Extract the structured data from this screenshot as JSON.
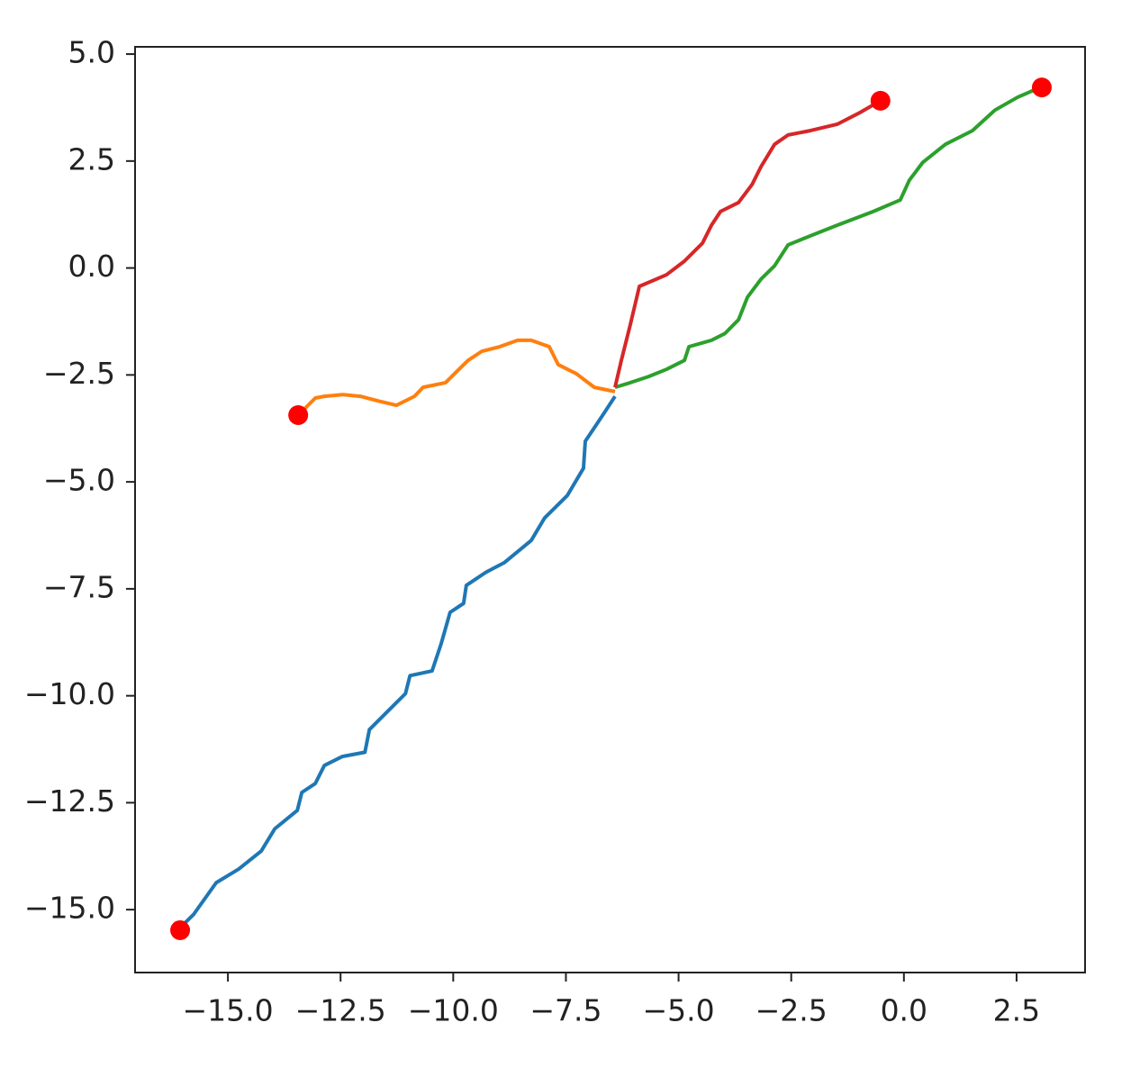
{
  "chart_data": {
    "type": "line",
    "xlim": [
      -17.06,
      4.02
    ],
    "ylim": [
      -16.47,
      5.17
    ],
    "xticks": [
      {
        "value": -15,
        "label": "−15.0"
      },
      {
        "value": -12.5,
        "label": "−12.5"
      },
      {
        "value": -10,
        "label": "−10.0"
      },
      {
        "value": -7.5,
        "label": "−7.5"
      },
      {
        "value": -5,
        "label": "−5.0"
      },
      {
        "value": -2.5,
        "label": "−2.5"
      },
      {
        "value": 0,
        "label": "0.0"
      },
      2.5
    ],
    "yticks": [
      {
        "value": 5,
        "label": "5.0"
      },
      2.5,
      {
        "value": 0,
        "label": "0.0"
      },
      {
        "value": -2.5,
        "label": "−2.5"
      },
      {
        "value": -5,
        "label": "−5.0"
      },
      {
        "value": -7.5,
        "label": "−7.5"
      },
      {
        "value": -10,
        "label": "−10.0"
      },
      {
        "value": -12.5,
        "label": "−12.5"
      },
      {
        "value": -15,
        "label": "−15.0"
      }
    ],
    "series": [
      {
        "color": "#1f77b4",
        "x": [
          -6.41,
          -6.67,
          -7.07,
          -7.11,
          -7.47,
          -7.97,
          -8.27,
          -8.87,
          -9.27,
          -9.71,
          -9.77,
          -10.07,
          -10.27,
          -10.47,
          -10.96,
          -11.06,
          -11.46,
          -11.86,
          -11.96,
          -12.46,
          -12.86,
          -13.06,
          -13.36,
          -13.46,
          -13.96,
          -14.26,
          -14.76,
          -15.26,
          -15.76,
          -16.06
        ],
        "values": [
          -3.0,
          -3.42,
          -4.05,
          -4.68,
          -5.32,
          -5.84,
          -6.37,
          -6.89,
          -7.11,
          -7.42,
          -7.84,
          -8.05,
          -8.79,
          -9.42,
          -9.53,
          -9.95,
          -10.37,
          -10.79,
          -11.32,
          -11.42,
          -11.63,
          -12.05,
          -12.26,
          -12.68,
          -13.11,
          -13.63,
          -14.05,
          -14.37,
          -15.11,
          -15.42
        ]
      },
      {
        "color": "#ff7f0e",
        "x": [
          -6.41,
          -6.87,
          -7.27,
          -7.67,
          -7.87,
          -8.27,
          -8.57,
          -8.97,
          -9.37,
          -9.67,
          -9.97,
          -10.17,
          -10.67,
          -10.86,
          -11.26,
          -11.66,
          -12.06,
          -12.46,
          -12.86,
          -13.06,
          -13.26,
          -13.46
        ],
        "values": [
          -2.89,
          -2.79,
          -2.47,
          -2.26,
          -1.84,
          -1.69,
          -1.69,
          -1.84,
          -1.95,
          -2.16,
          -2.47,
          -2.68,
          -2.79,
          -3.0,
          -3.21,
          -3.11,
          -3.0,
          -2.96,
          -3.0,
          -3.04,
          -3.25,
          -3.46
        ]
      },
      {
        "color": "#2ca02c",
        "x": [
          -6.41,
          -6.07,
          -5.67,
          -5.27,
          -4.87,
          -4.77,
          -4.27,
          -3.97,
          -3.67,
          -3.47,
          -3.17,
          -2.87,
          -2.57,
          -2.08,
          -1.48,
          -0.68,
          -0.08,
          0.12,
          0.42,
          0.92,
          1.52,
          2.02,
          2.52,
          3.02
        ],
        "values": [
          -2.79,
          -2.68,
          -2.54,
          -2.37,
          -2.16,
          -1.84,
          -1.69,
          -1.53,
          -1.21,
          -0.68,
          -0.26,
          0.05,
          0.54,
          0.75,
          1.0,
          1.32,
          1.59,
          2.05,
          2.47,
          2.89,
          3.21,
          3.69,
          3.99,
          4.22
        ]
      },
      {
        "color": "#d62728",
        "x": [
          -6.41,
          -6.27,
          -6.07,
          -5.87,
          -5.27,
          -4.87,
          -4.47,
          -4.27,
          -4.07,
          -3.67,
          -3.37,
          -3.17,
          -2.87,
          -2.57,
          -2.08,
          -1.48,
          -0.98,
          -0.52
        ],
        "values": [
          -2.79,
          -2.16,
          -1.32,
          -0.43,
          -0.16,
          0.16,
          0.58,
          1.0,
          1.32,
          1.53,
          1.95,
          2.37,
          2.89,
          3.11,
          3.21,
          3.36,
          3.63,
          3.91
        ]
      },
      {
        "type": "scatter",
        "color": "#ff0000",
        "x": [
          -16.06,
          -13.44,
          -0.52,
          3.06
        ],
        "values": [
          -15.48,
          -3.44,
          3.91,
          4.22
        ]
      }
    ]
  }
}
